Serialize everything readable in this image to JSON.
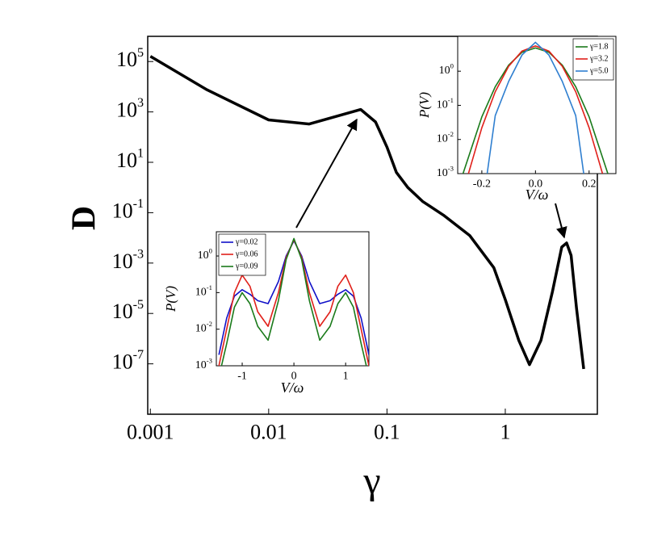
{
  "chart_data": [
    {
      "type": "line",
      "xlabel": "γ",
      "ylabel": "D",
      "xscale": "log",
      "yscale": "log",
      "xlim": [
        0.00095,
        6
      ],
      "ylim": [
        1e-09,
        1000000
      ],
      "xticks": [
        0.001,
        0.01,
        0.1,
        1
      ],
      "yticks": [
        {
          "value": 1e-07,
          "label": "10^-7"
        },
        {
          "value": 1e-05,
          "label": "10^-5"
        },
        {
          "value": 0.001,
          "label": "10^-3"
        },
        {
          "value": 0.1,
          "label": "10^-1"
        },
        {
          "value": 10,
          "label": "10^1"
        },
        {
          "value": 1000,
          "label": "10^3"
        },
        {
          "value": 100000,
          "label": "10^5"
        }
      ],
      "series": [
        {
          "name": "D",
          "color": "#000000",
          "x": [
            0.001,
            0.003,
            0.01,
            0.022,
            0.06,
            0.08,
            0.1,
            0.12,
            0.15,
            0.2,
            0.3,
            0.5,
            0.8,
            1,
            1.3,
            1.6,
            2,
            2.5,
            3,
            3.3,
            3.6,
            4,
            4.6
          ],
          "values": [
            160000,
            7600,
            480,
            330,
            1250,
            400,
            40,
            4,
            1,
            0.28,
            0.08,
            0.0125,
            0.00066,
            3.5e-05,
            8.5e-07,
            9.3e-08,
            8.5e-07,
            7.2e-05,
            0.0043,
            0.0063,
            0.002,
            1.6e-05,
            6.3e-08
          ]
        }
      ]
    },
    {
      "type": "line",
      "xlabel": "V/ω",
      "ylabel": "P(V)",
      "yscale": "log",
      "xlim": [
        -0.29,
        0.3
      ],
      "ylim": [
        0.001,
        10.5
      ],
      "xticks": [
        -0.2,
        {
          "value": 0,
          "label": "0.0"
        },
        0.2
      ],
      "yticks": [
        {
          "value": 0.001,
          "label": "10^-3"
        },
        {
          "value": 0.01,
          "label": "10^-2"
        },
        {
          "value": 0.1,
          "label": "10^-1"
        },
        {
          "value": 1,
          "label": "10^0"
        }
      ],
      "legend": "upper right",
      "series": [
        {
          "name": "γ=1.8",
          "color": "#1a7a1a",
          "x": [
            -0.27,
            -0.2,
            -0.15,
            -0.1,
            -0.05,
            0,
            0.05,
            0.1,
            0.15,
            0.2,
            0.27
          ],
          "values": [
            0.001,
            0.046,
            0.35,
            1.5,
            3.6,
            4.8,
            3.6,
            1.5,
            0.35,
            0.046,
            0.001
          ]
        },
        {
          "name": "γ=3.2",
          "color": "#e0201a",
          "x": [
            -0.25,
            -0.2,
            -0.15,
            -0.1,
            -0.05,
            0,
            0.05,
            0.1,
            0.15,
            0.2,
            0.25
          ],
          "values": [
            0.001,
            0.022,
            0.25,
            1.39,
            3.9,
            5.5,
            3.9,
            1.39,
            0.25,
            0.022,
            0.001
          ]
        },
        {
          "name": "γ=5.0",
          "color": "#2f7fd0",
          "x": [
            -0.18,
            -0.15,
            -0.1,
            -0.05,
            0,
            0.05,
            0.1,
            0.15,
            0.18
          ],
          "values": [
            0.001,
            0.05,
            0.5,
            3,
            7,
            3,
            0.5,
            0.05,
            0.001
          ]
        }
      ]
    },
    {
      "type": "line",
      "xlabel": "V/ω",
      "ylabel": "P(V)",
      "yscale": "log",
      "xlim": [
        -1.5,
        1.45
      ],
      "ylim": [
        0.001,
        4.6
      ],
      "xticks": [
        -1,
        0,
        1
      ],
      "yticks": [
        {
          "value": 0.001,
          "label": "10^-3"
        },
        {
          "value": 0.01,
          "label": "10^-2"
        },
        {
          "value": 0.1,
          "label": "10^-1"
        },
        {
          "value": 1,
          "label": "10^0"
        }
      ],
      "legend": "upper left",
      "series": [
        {
          "name": "γ=0.02",
          "color": "#1010c8",
          "x": [
            -1.45,
            -1.3,
            -1.15,
            -1,
            -0.85,
            -0.7,
            -0.5,
            -0.3,
            -0.15,
            0,
            0.15,
            0.3,
            0.5,
            0.7,
            0.85,
            1,
            1.15,
            1.3,
            1.45
          ],
          "values": [
            0.002,
            0.02,
            0.08,
            0.12,
            0.09,
            0.06,
            0.05,
            0.2,
            1.0,
            2.6,
            1.0,
            0.2,
            0.05,
            0.06,
            0.09,
            0.12,
            0.08,
            0.02,
            0.002
          ]
        },
        {
          "name": "γ=0.06",
          "color": "#e0201a",
          "x": [
            -1.45,
            -1.3,
            -1.15,
            -1,
            -0.85,
            -0.7,
            -0.5,
            -0.3,
            -0.15,
            0,
            0.15,
            0.3,
            0.5,
            0.7,
            0.85,
            1,
            1.15,
            1.3,
            1.45
          ],
          "values": [
            0.001,
            0.01,
            0.1,
            0.3,
            0.15,
            0.03,
            0.012,
            0.1,
            0.9,
            2.8,
            0.9,
            0.1,
            0.012,
            0.03,
            0.15,
            0.3,
            0.1,
            0.01,
            0.001
          ]
        },
        {
          "name": "γ=0.09",
          "color": "#1a7a1a",
          "x": [
            -1.4,
            -1.3,
            -1.15,
            -1,
            -0.85,
            -0.7,
            -0.5,
            -0.3,
            -0.15,
            0,
            0.15,
            0.3,
            0.5,
            0.7,
            0.85,
            1,
            1.15,
            1.3,
            1.4
          ],
          "values": [
            0.001,
            0.004,
            0.04,
            0.1,
            0.05,
            0.012,
            0.005,
            0.06,
            0.8,
            3.0,
            0.8,
            0.06,
            0.005,
            0.012,
            0.05,
            0.1,
            0.04,
            0.004,
            0.001
          ]
        }
      ]
    }
  ]
}
